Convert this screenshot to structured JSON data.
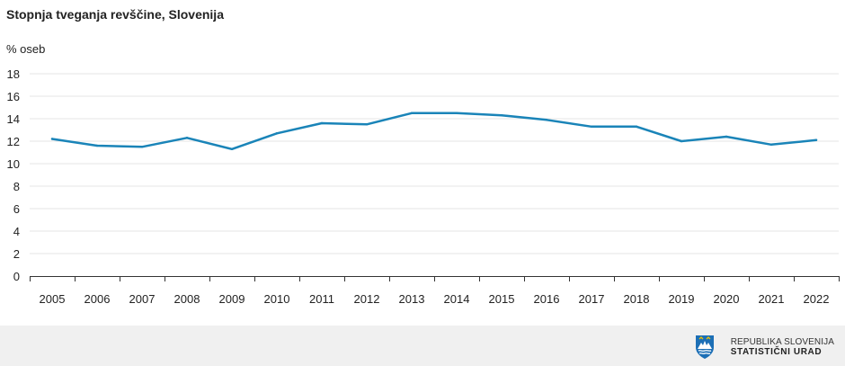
{
  "chart_data": {
    "type": "line",
    "title": "Stopnja tveganja revščine, Slovenija",
    "ylabel": "% oseb",
    "xlabel": "",
    "categories": [
      "2005",
      "2006",
      "2007",
      "2008",
      "2009",
      "2010",
      "2011",
      "2012",
      "2013",
      "2014",
      "2015",
      "2016",
      "2017",
      "2018",
      "2019",
      "2020",
      "2021",
      "2022"
    ],
    "series": [
      {
        "name": "Stopnja tveganja revščine",
        "values": [
          12.2,
          11.6,
          11.5,
          12.3,
          11.3,
          12.7,
          13.6,
          13.5,
          14.5,
          14.5,
          14.3,
          13.9,
          13.3,
          13.3,
          12.0,
          12.4,
          11.7,
          12.1
        ],
        "color": "#1a84b8"
      }
    ],
    "ylim": [
      0,
      18
    ],
    "yticks": [
      0,
      2,
      4,
      6,
      8,
      10,
      12,
      14,
      16,
      18
    ],
    "grid": true,
    "legend": "none"
  },
  "footer": {
    "logo_line1": "REPUBLIKA SLOVENIJA",
    "logo_line2": "STATISTIČNI URAD",
    "emblem_icon": "slovenia-coat-of-arms-icon"
  },
  "colors": {
    "line": "#1a84b8",
    "grid": "#e6e6e6",
    "axis": "#333333",
    "footer_bg": "#f0f0f0"
  }
}
